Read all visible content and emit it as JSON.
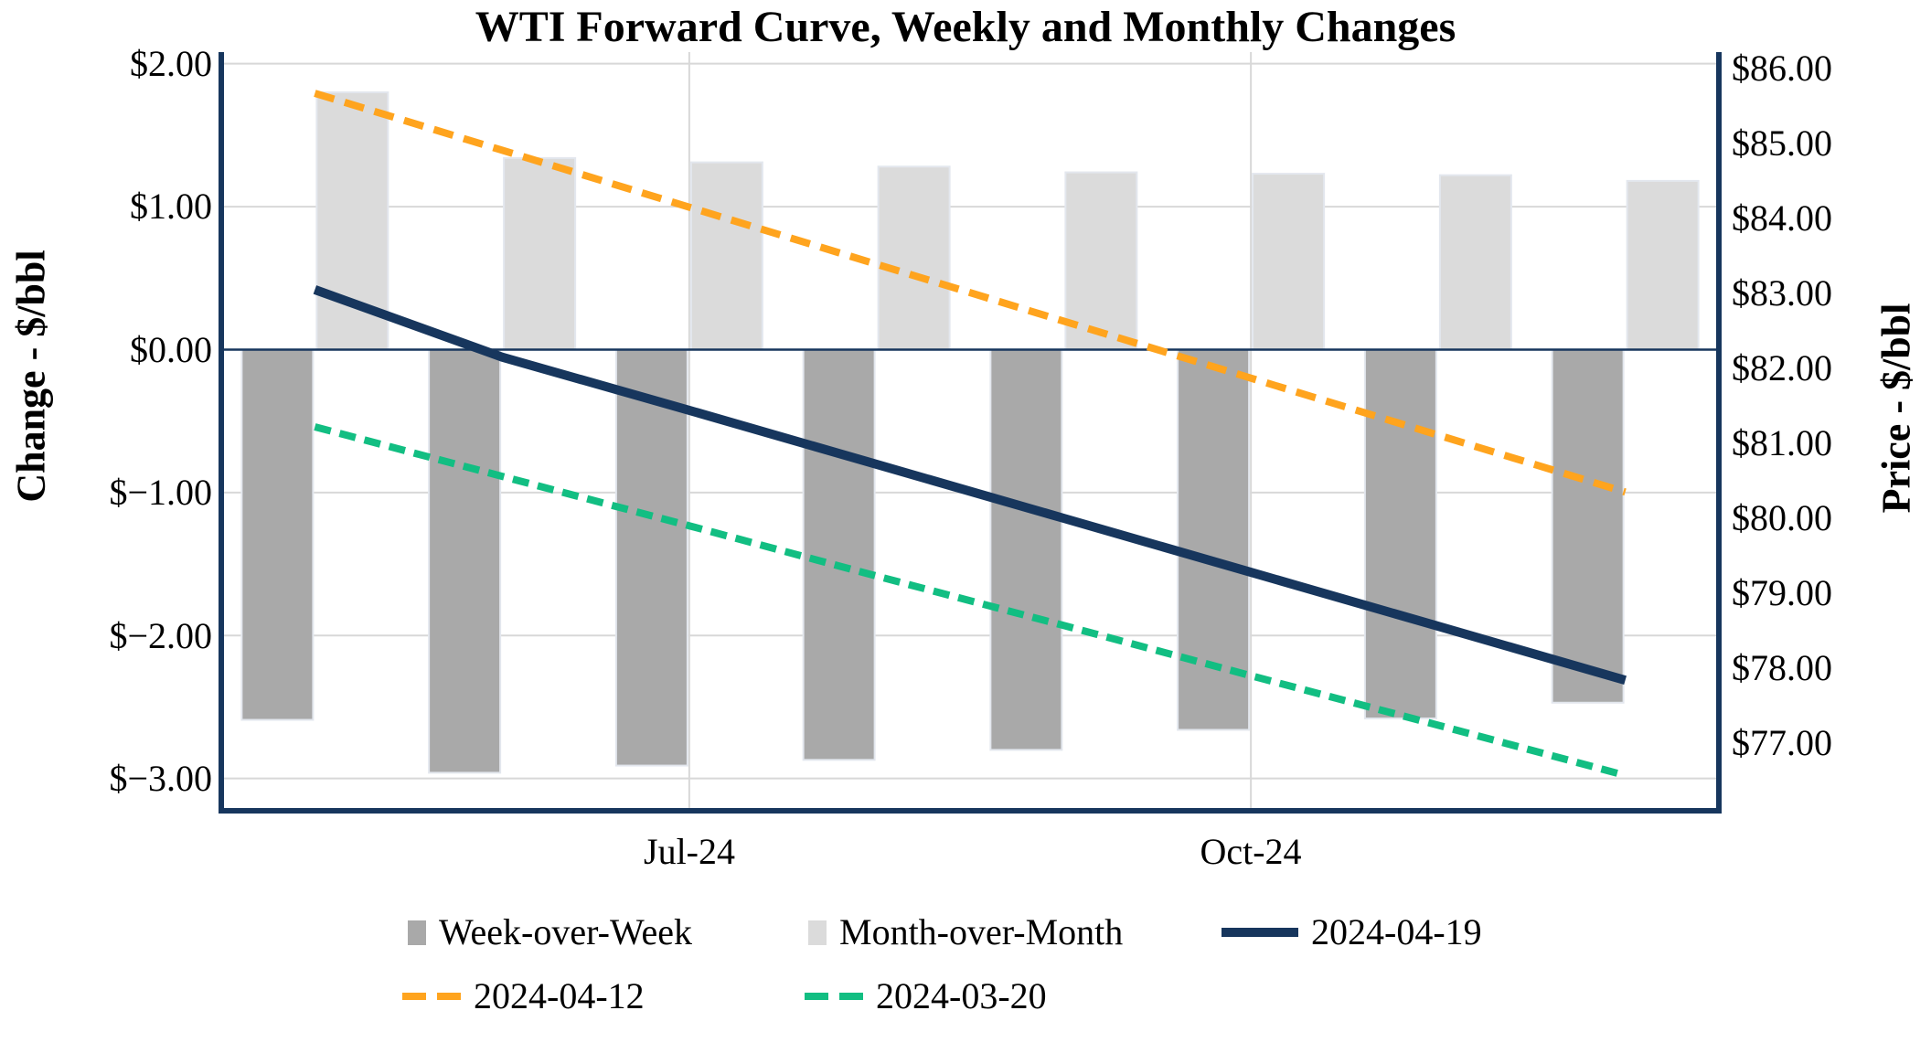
{
  "title": "WTI Forward Curve, Weekly and Monthly Changes",
  "left_axis": {
    "title": "Change - $/bbl",
    "ticks": [
      "$2.00",
      "$1.00",
      "$0.00",
      "$−1.00",
      "$−2.00",
      "$−3.00"
    ]
  },
  "right_axis": {
    "title": "Price - $/bbl",
    "ticks": [
      "$86.00",
      "$85.00",
      "$84.00",
      "$83.00",
      "$82.00",
      "$81.00",
      "$80.00",
      "$79.00",
      "$78.00",
      "$77.00"
    ]
  },
  "x_axis": {
    "tick_labels": [
      "Jul-24",
      "Oct-24"
    ]
  },
  "legend": {
    "items": [
      {
        "label": "Week-over-Week",
        "marker": "bar",
        "color": "#A9A9A9"
      },
      {
        "label": "Month-over-Month",
        "marker": "bar",
        "color": "#DBDBDB"
      },
      {
        "label": "2024-04-19",
        "marker": "line",
        "color": "#17365D"
      },
      {
        "label": "2024-04-12",
        "marker": "dash",
        "color": "#FFA41E"
      },
      {
        "label": "2024-03-20",
        "marker": "dash",
        "color": "#12BE82"
      }
    ]
  },
  "colors": {
    "frame": "#17365D",
    "zero_line": "#17365D",
    "gridline": "#D8D8D8",
    "bar_outline": "#E3E7EE",
    "background": "#FFFFFF"
  },
  "chart_data": {
    "type": "combo",
    "categories": [
      "",
      "",
      "Jul-24",
      "",
      "",
      "Oct-24",
      "",
      ""
    ],
    "x_tick_positions": [
      2,
      5
    ],
    "left_axis_range": [
      -3.226,
      2.081
    ],
    "right_axis_range": [
      76.098,
      86.219
    ],
    "left_gridline_values": [
      2,
      1,
      0,
      -1,
      -2,
      -3
    ],
    "right_tick_values": [
      86,
      85,
      84,
      83,
      82,
      81,
      80,
      79,
      78,
      77
    ],
    "grid": true,
    "legend_position": "bottom",
    "series": [
      {
        "name": "Week-over-Week",
        "type": "bar",
        "axis": "left",
        "color": "#A9A9A9",
        "values": [
          -2.59,
          -2.96,
          -2.91,
          -2.87,
          -2.8,
          -2.66,
          -2.58,
          -2.47
        ]
      },
      {
        "name": "Month-over-Month",
        "type": "bar",
        "axis": "left",
        "color": "#DBDBDB",
        "values": [
          1.8,
          1.34,
          1.31,
          1.28,
          1.24,
          1.23,
          1.22,
          1.18
        ]
      },
      {
        "name": "2024-04-12",
        "type": "line",
        "style": "dashed",
        "axis": "right",
        "color": "#FFA41E",
        "values": [
          85.67,
          84.91,
          84.15,
          83.39,
          82.63,
          81.87,
          81.11,
          80.35
        ]
      },
      {
        "name": "2024-03-20",
        "type": "line",
        "style": "dashed",
        "axis": "right",
        "color": "#12BE82",
        "values": [
          81.22,
          80.56,
          79.9,
          79.23,
          78.57,
          77.9,
          77.24,
          76.57
        ]
      },
      {
        "name": "2024-04-19",
        "type": "line",
        "style": "solid",
        "axis": "right",
        "color": "#17365D",
        "values": [
          83.05,
          82.15,
          81.44,
          80.72,
          80.0,
          79.28,
          78.56,
          77.84
        ]
      }
    ]
  }
}
